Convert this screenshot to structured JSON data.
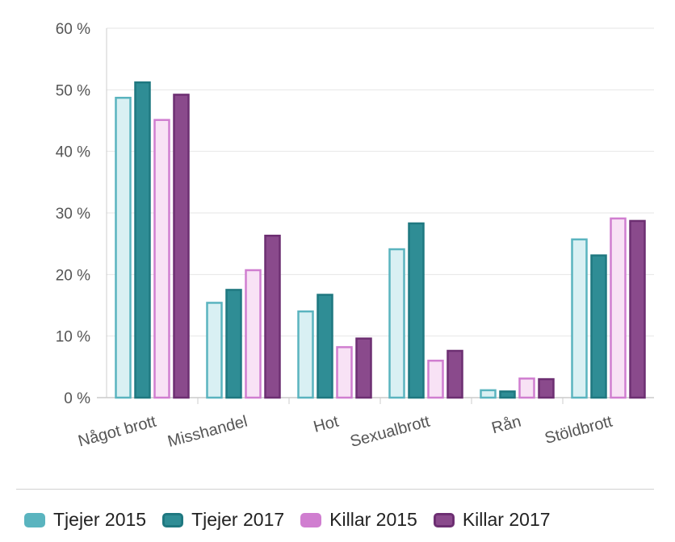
{
  "chart_data": {
    "type": "bar",
    "categories": [
      "Något brott",
      "Misshandel",
      "Hot",
      "Sexualbrott",
      "Rån",
      "Stöldbrott"
    ],
    "series": [
      {
        "name": "Tjejer 2015",
        "values": [
          48.7,
          15.4,
          14.0,
          24.1,
          1.2,
          25.7
        ],
        "fill": "#d9f0f3",
        "stroke": "#5ab4bf"
      },
      {
        "name": "Tjejer 2017",
        "values": [
          51.2,
          17.5,
          16.7,
          28.3,
          1.0,
          23.1
        ],
        "fill": "#2f8d95",
        "stroke": "#1f7880"
      },
      {
        "name": "Killar 2015",
        "values": [
          45.1,
          20.7,
          8.2,
          6.0,
          3.1,
          29.1
        ],
        "fill": "#f8e2f5",
        "stroke": "#d07ed0"
      },
      {
        "name": "Killar 2017",
        "values": [
          49.2,
          26.3,
          9.6,
          7.6,
          3.0,
          28.7
        ],
        "fill": "#8a4a8c",
        "stroke": "#6d2f72"
      }
    ],
    "y_ticks": [
      "0 %",
      "10 %",
      "20 %",
      "30 %",
      "40 %",
      "50 %",
      "60 %"
    ],
    "ylim": [
      0,
      60
    ],
    "title": "",
    "xlabel": "",
    "ylabel": "",
    "grid": true,
    "legend_position": "bottom"
  }
}
